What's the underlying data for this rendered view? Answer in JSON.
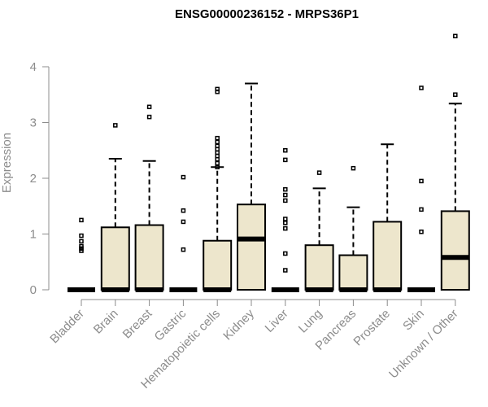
{
  "chart_data": {
    "type": "boxplot",
    "title": "ENSG00000236152 - MRPS36P1",
    "xlabel": "",
    "ylabel": "Expression",
    "ylim": [
      0,
      4.5
    ],
    "yticks": [
      0,
      1,
      2,
      3,
      4
    ],
    "box_color": "#ede6cc",
    "categories": [
      "Bladder",
      "Brain",
      "Breast",
      "Gastric",
      "Hematopoietic cells",
      "Kidney",
      "Liver",
      "Lung",
      "Pancreas",
      "Prostate",
      "Skin",
      "Unknown / Other"
    ],
    "boxes": [
      {
        "category": "Bladder",
        "q1": 0,
        "median": 0,
        "q3": 0,
        "whisker_low": 0,
        "whisker_high": 0,
        "outliers": [
          1.25,
          0.97,
          0.87,
          0.78,
          0.74,
          0.7
        ]
      },
      {
        "category": "Brain",
        "q1": 0,
        "median": 0,
        "q3": 1.12,
        "whisker_low": 0,
        "whisker_high": 2.35,
        "outliers": [
          2.95
        ]
      },
      {
        "category": "Breast",
        "q1": 0,
        "median": 0,
        "q3": 1.16,
        "whisker_low": 0,
        "whisker_high": 2.31,
        "outliers": [
          3.28,
          3.1
        ]
      },
      {
        "category": "Gastric",
        "q1": 0,
        "median": 0,
        "q3": 0,
        "whisker_low": 0,
        "whisker_high": 0,
        "outliers": [
          2.02,
          1.42,
          1.22,
          0.72
        ]
      },
      {
        "category": "Hematopoietic cells",
        "q1": 0,
        "median": 0,
        "q3": 0.88,
        "whisker_low": 0,
        "whisker_high": 2.2,
        "outliers": [
          3.6,
          3.55,
          2.72,
          2.65,
          2.58,
          2.52,
          2.46,
          2.4,
          2.34,
          2.27,
          2.2
        ]
      },
      {
        "category": "Kidney",
        "q1": 0,
        "median": 0.91,
        "q3": 1.53,
        "whisker_low": 0,
        "whisker_high": 3.7,
        "outliers": []
      },
      {
        "category": "Liver",
        "q1": 0,
        "median": 0,
        "q3": 0,
        "whisker_low": 0,
        "whisker_high": 0,
        "outliers": [
          2.5,
          2.33,
          1.8,
          1.7,
          1.6,
          1.27,
          1.2,
          1.1,
          0.65,
          0.35
        ]
      },
      {
        "category": "Lung",
        "q1": 0,
        "median": 0,
        "q3": 0.8,
        "whisker_low": 0,
        "whisker_high": 1.82,
        "outliers": [
          2.1
        ]
      },
      {
        "category": "Pancreas",
        "q1": 0,
        "median": 0,
        "q3": 0.62,
        "whisker_low": 0,
        "whisker_high": 1.48,
        "outliers": [
          2.18
        ]
      },
      {
        "category": "Prostate",
        "q1": 0,
        "median": 0,
        "q3": 1.22,
        "whisker_low": 0,
        "whisker_high": 2.61,
        "outliers": []
      },
      {
        "category": "Skin",
        "q1": 0,
        "median": 0,
        "q3": 0,
        "whisker_low": 0,
        "whisker_high": 0,
        "outliers": [
          3.62,
          1.95,
          1.44,
          1.04
        ]
      },
      {
        "category": "Unknown / Other",
        "q1": 0,
        "median": 0.58,
        "q3": 1.41,
        "whisker_low": 0,
        "whisker_high": 3.34,
        "outliers": [
          4.55,
          3.5
        ]
      }
    ]
  }
}
